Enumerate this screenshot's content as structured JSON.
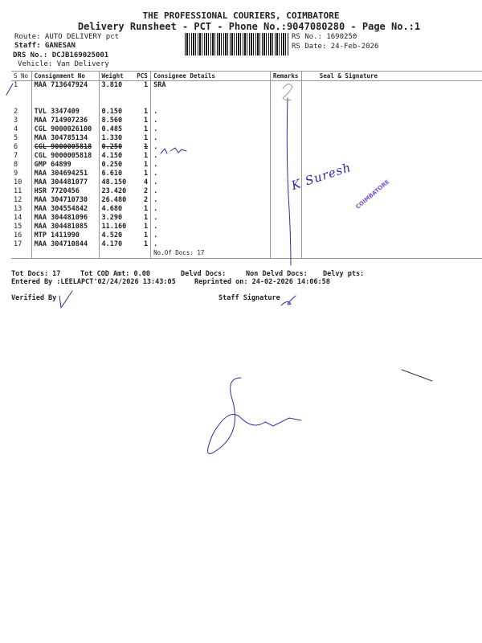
{
  "header": {
    "company": "THE PROFESSIONAL COURIERS, COIMBATORE",
    "subtitle": "Delivery Runsheet - PCT - Phone No.:9047080280 - Page No.:1",
    "route": "Route: AUTO DELIVERY pct",
    "staff": "Staff: GANESAN",
    "drs_no": "DRS No.: DCJB169025001",
    "vehicle": "Vehicle: Van Delivery",
    "rs_no": "RS No.: 1690250",
    "rs_date": "RS Date: 24-Feb-2026"
  },
  "table": {
    "columns": [
      "S No",
      "Consignment No",
      "Weight",
      "PCS",
      "Consignee Details",
      "Remarks",
      "Seal & Signature"
    ],
    "rows": [
      {
        "sno": "1",
        "consignment": "MAA 713647924",
        "weight": "3.810",
        "pcs": "1",
        "consignee": "SRA"
      },
      {
        "sno": "2",
        "consignment": "TVL 3347409",
        "weight": "0.150",
        "pcs": "1",
        "consignee": "."
      },
      {
        "sno": "3",
        "consignment": "MAA 714907236",
        "weight": "8.560",
        "pcs": "1",
        "consignee": "."
      },
      {
        "sno": "4",
        "consignment": "CGL 9000026100",
        "weight": "0.485",
        "pcs": "1",
        "consignee": "."
      },
      {
        "sno": "5",
        "consignment": "MAA 304785134",
        "weight": "1.330",
        "pcs": "1",
        "consignee": "."
      },
      {
        "sno": "6",
        "consignment": "CGL 9000005818",
        "weight": "0.250",
        "pcs": "1",
        "consignee": "."
      },
      {
        "sno": "7",
        "consignment": "CGL 9000005818",
        "weight": "4.150",
        "pcs": "1",
        "consignee": "."
      },
      {
        "sno": "8",
        "consignment": "GMP 64899",
        "weight": "0.250",
        "pcs": "1",
        "consignee": "."
      },
      {
        "sno": "9",
        "consignment": "MAA 304694251",
        "weight": "6.610",
        "pcs": "1",
        "consignee": "."
      },
      {
        "sno": "10",
        "consignment": "MAA 304481077",
        "weight": "48.150",
        "pcs": "4",
        "consignee": "."
      },
      {
        "sno": "11",
        "consignment": "HSR 7720456",
        "weight": "23.420",
        "pcs": "2",
        "consignee": "."
      },
      {
        "sno": "12",
        "consignment": "MAA 304710730",
        "weight": "26.480",
        "pcs": "2",
        "consignee": "."
      },
      {
        "sno": "13",
        "consignment": "MAA 304554842",
        "weight": "4.680",
        "pcs": "1",
        "consignee": "."
      },
      {
        "sno": "14",
        "consignment": "MAA 304481096",
        "weight": "3.290",
        "pcs": "1",
        "consignee": "."
      },
      {
        "sno": "15",
        "consignment": "MAA 304481085",
        "weight": "11.160",
        "pcs": "1",
        "consignee": "."
      },
      {
        "sno": "16",
        "consignment": "MTP 1411990",
        "weight": "4.520",
        "pcs": "1",
        "consignee": "."
      },
      {
        "sno": "17",
        "consignment": "MAA 304710844",
        "weight": "4.170",
        "pcs": "1",
        "consignee": "."
      }
    ],
    "no_of_docs": "No.Of Docs: 17"
  },
  "footer": {
    "tot_docs": "Tot Docs:  17",
    "tot_cod": "Tot COD Amt:    0.00",
    "delvd": "Delvd Docs:",
    "non_delvd": "Non Delvd Docs:",
    "delvy_pts": "Delvy pts:",
    "entered_by": "Entered By :LEELAPCT'02/24/2026 13:43:05",
    "reprinted": "Reprinted on: 24-02-2026 14:06:58",
    "verified_by": "Verified By",
    "staff_signature": "Staff Signature"
  },
  "annotations": {
    "handwritten_signature": "K Suresh",
    "stamp": "COIMBATORE",
    "ink_color": "#2b2f9e",
    "stamp_color": "#7b4fd6"
  }
}
